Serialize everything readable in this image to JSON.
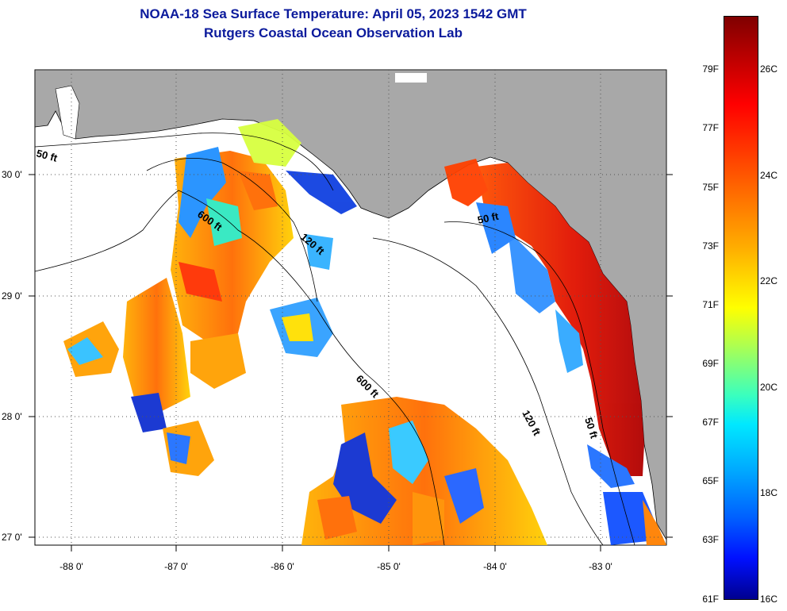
{
  "title": {
    "line1": "NOAA-18 Sea Surface Temperature:  April 05, 2023 1542 GMT",
    "line2": "Rutgers Coastal Ocean Observation Lab"
  },
  "map": {
    "lon_labels": [
      "-88 0'",
      "-87 0'",
      "-86 0'",
      "-85 0'",
      "-84 0'",
      "-83 0'"
    ],
    "lat_labels": [
      "30 0'",
      "29 0'",
      "28 0'",
      "27 0'"
    ],
    "contour_labels": [
      "50 ft",
      "600 ft",
      "120 ft",
      "600 ft",
      "50 ft",
      "120 ft",
      "50 ft"
    ]
  },
  "colorbar": {
    "fahrenheit": [
      "79F",
      "77F",
      "75F",
      "73F",
      "71F",
      "69F",
      "67F",
      "65F",
      "63F",
      "61F"
    ],
    "celsius": [
      "26C",
      "24C",
      "22C",
      "20C",
      "18C",
      "16C"
    ],
    "colors": [
      "#7f0000",
      "#ff0000",
      "#ff8c00",
      "#ffff00",
      "#00e8ff",
      "#0060ff",
      "#00008f"
    ]
  }
}
